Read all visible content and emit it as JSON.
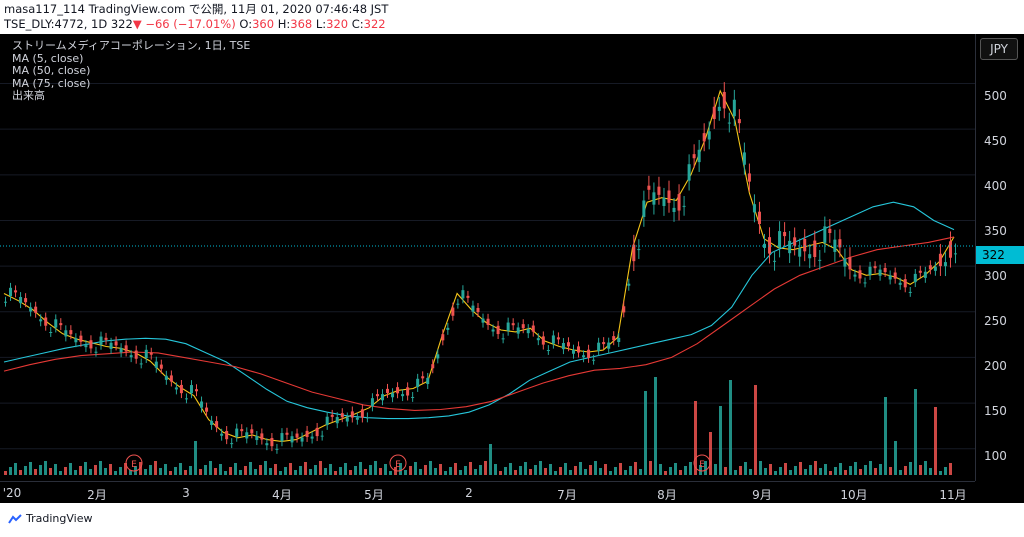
{
  "header": {
    "line1": "masa117_114 TradingView.com で公開, 11月 01, 2020 07:46:48 JST",
    "line2_symbol": "TSE_DLY:4772, 1D 322",
    "line2_change": "−66 (−17.01%)",
    "line2_ohlc_o": "360",
    "line2_ohlc_h": "368",
    "line2_ohlc_l": "320",
    "line2_ohlc_c": "322"
  },
  "legend": {
    "title": "ストリームメディアコーポレーション, 1日, TSE",
    "ma5": "MA (5, close)",
    "ma50": "MA (50, close)",
    "ma75": "MA (75, close)",
    "volume": "出来高"
  },
  "price_axis": {
    "currency": "JPY",
    "last_price": "322",
    "ticks": [
      "500",
      "450",
      "400",
      "350",
      "300",
      "250",
      "200",
      "150",
      "100"
    ]
  },
  "time_axis": {
    "ticks": [
      "'20",
      "2月",
      "3",
      "4月",
      "5月",
      "2",
      "7月",
      "8月",
      "9月",
      "10月",
      "11月"
    ]
  },
  "earnings_marker": "E",
  "footer": {
    "brand": "TradingView"
  },
  "colors": {
    "up": "#26a69a",
    "down": "#ef5350",
    "ma5": "#f5c518",
    "ma50": "#26c6da",
    "ma75": "#e53935"
  },
  "chart_data": {
    "type": "candlestick",
    "x_start": "2020-01",
    "x_end": "2020-10-30",
    "y_range": [
      80,
      540
    ],
    "series": [
      {
        "name": "MA (5, close)",
        "values": [
          270,
          262,
          252,
          238,
          226,
          220,
          216,
          212,
          210,
          205,
          196,
          180,
          168,
          158,
          132,
          118,
          112,
          115,
          110,
          108,
          110,
          118,
          126,
          132,
          138,
          145,
          158,
          164,
          166,
          174,
          225,
          270,
          252,
          238,
          230,
          228,
          232,
          218,
          212,
          208,
          206,
          208,
          222,
          320,
          370,
          375,
          372,
          400,
          440,
          492,
          460,
          380,
          330,
          320,
          318,
          322,
          326,
          318,
          296,
          290,
          292,
          288,
          280,
          290,
          305,
          332
        ]
      },
      {
        "name": "MA (50, close)",
        "values": [
          195,
          200,
          205,
          210,
          214,
          218,
          220,
          221,
          220,
          215,
          205,
          195,
          180,
          165,
          152,
          145,
          140,
          136,
          134,
          133,
          133,
          134,
          136,
          140,
          148,
          160,
          175,
          185,
          195,
          200,
          205,
          210,
          215,
          220,
          225,
          235,
          255,
          290,
          315,
          325,
          335,
          345,
          355,
          365,
          370,
          365,
          350,
          340
        ]
      },
      {
        "name": "MA (75, close)",
        "values": [
          185,
          192,
          198,
          202,
          204,
          206,
          205,
          200,
          195,
          190,
          182,
          172,
          162,
          155,
          148,
          144,
          142,
          143,
          146,
          152,
          162,
          172,
          180,
          186,
          188,
          192,
          200,
          215,
          235,
          255,
          275,
          290,
          300,
          310,
          318,
          322,
          326,
          332
        ]
      }
    ]
  }
}
